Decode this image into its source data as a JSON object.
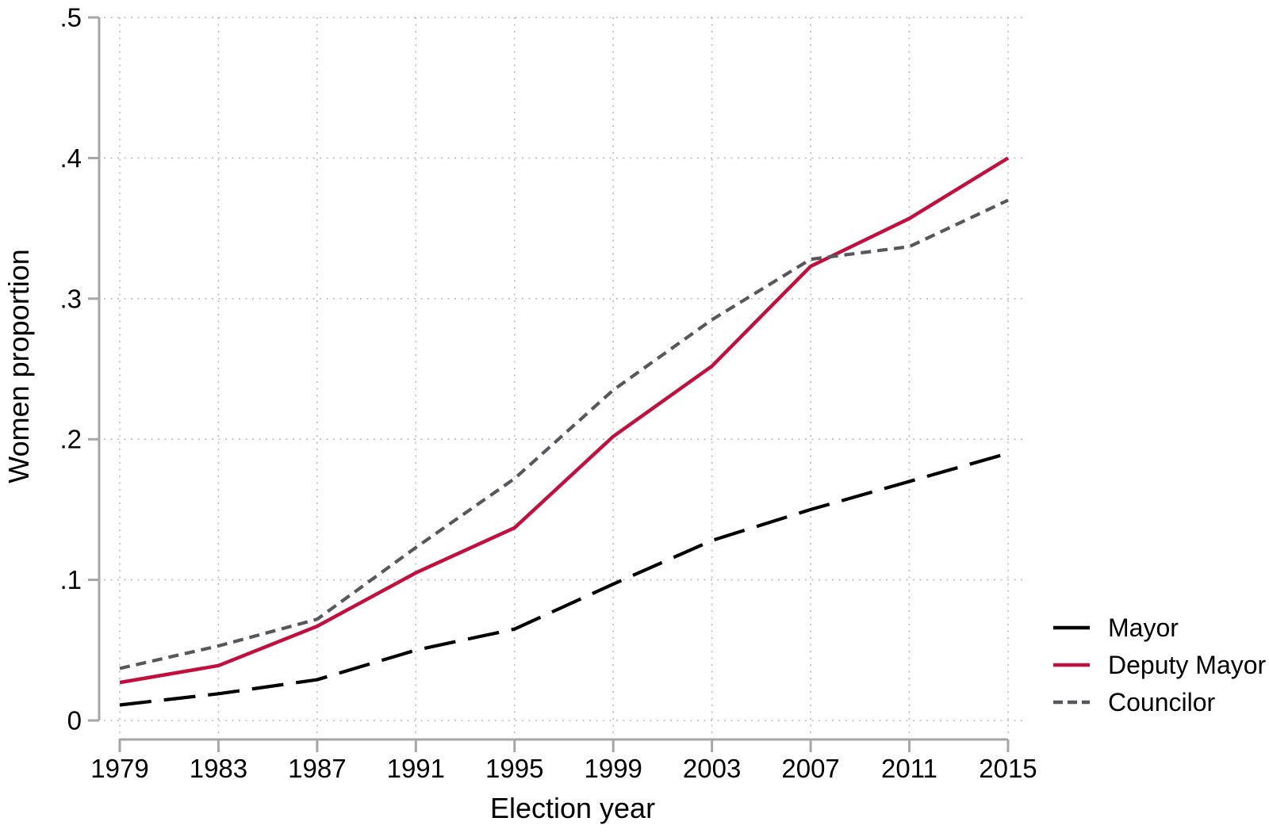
{
  "figure": {
    "background_color": "#ffffff",
    "axis_line_color": "#a6a6a6",
    "gridline_color": "#bababa",
    "text_color": "#000000"
  },
  "chart_data": {
    "type": "line",
    "title": "",
    "xlabel": "Election year",
    "ylabel": "Women proportion",
    "x": [
      1979,
      1983,
      1987,
      1991,
      1995,
      1999,
      2003,
      2007,
      2011,
      2015
    ],
    "xtick_labels": [
      "1979",
      "1983",
      "1987",
      "1991",
      "1995",
      "1999",
      "2003",
      "2007",
      "2011",
      "2015"
    ],
    "ylim": [
      0,
      0.5
    ],
    "yticks": [
      0,
      0.1,
      0.2,
      0.3,
      0.4,
      0.5
    ],
    "ytick_labels": [
      "0",
      ".1",
      ".2",
      ".3",
      ".4",
      ".5"
    ],
    "grid": "dotted horizontal and vertical",
    "legend_position": "outside right bottom",
    "series": [
      {
        "name": "Mayor",
        "color": "#000000",
        "line_style": "long-dash",
        "values": [
          0.011,
          0.019,
          0.029,
          0.05,
          0.065,
          0.097,
          0.128,
          0.15,
          0.17,
          0.19
        ]
      },
      {
        "name": "Deputy Mayor",
        "color": "#c20f3e",
        "line_style": "solid",
        "values": [
          0.027,
          0.039,
          0.067,
          0.105,
          0.137,
          0.202,
          0.252,
          0.323,
          0.357,
          0.4
        ]
      },
      {
        "name": "Councilor",
        "color": "#58585c",
        "line_style": "short-dash",
        "values": [
          0.037,
          0.053,
          0.072,
          0.123,
          0.172,
          0.235,
          0.285,
          0.328,
          0.337,
          0.37
        ]
      }
    ]
  }
}
